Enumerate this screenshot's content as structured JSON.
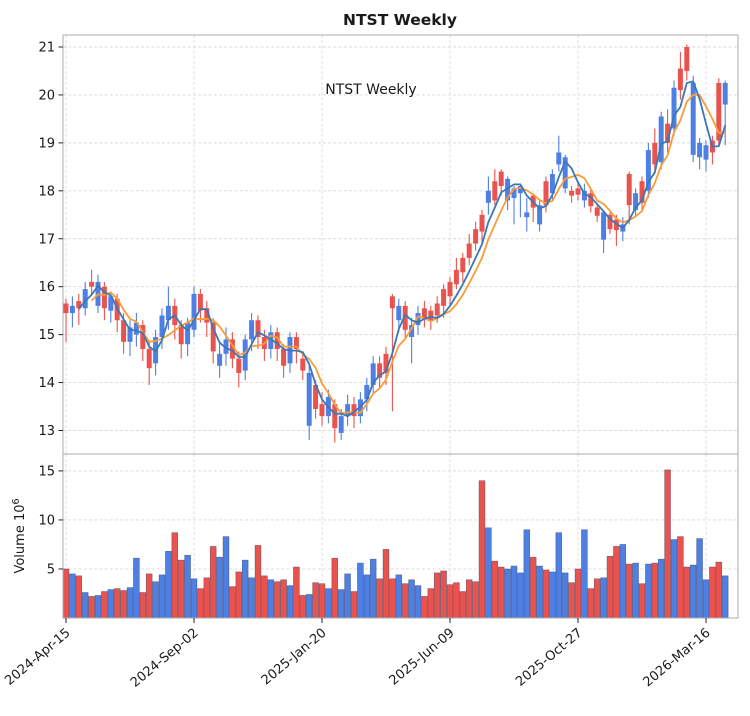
{
  "title": "NTST  Weekly",
  "annotation": "NTST  Weekly",
  "colors": {
    "up": "#4e80e3",
    "down": "#e9534e",
    "ma_fast": "#3b77b7",
    "ma_slow": "#f99c38",
    "grid": "#d9d9d9",
    "spine": "#ababab",
    "tick": "#262626",
    "volume_bar_edge": "rgba(35,40,90,0.55)"
  },
  "chart_data": {
    "type": "candlestick+volume",
    "symbol": "NTST",
    "interval": "Weekly",
    "price_axis": {
      "min": 12.55,
      "max": 21.3,
      "ticks": [
        13,
        14,
        15,
        16,
        17,
        18,
        19,
        20,
        21
      ]
    },
    "volume_axis": {
      "ticks": [
        5,
        10,
        15
      ],
      "max": 16.7,
      "label_base": "Volume  10",
      "label_exp": "6"
    },
    "x_axis": {
      "tick_indices": [
        0,
        20,
        40,
        60,
        80,
        100
      ],
      "tick_labels": [
        "2024-Apr-15",
        "2024-Sep-02",
        "2025-Jan-20",
        "2025-Jun-09",
        "2025-Oct-27",
        "2026-Mar-16"
      ]
    },
    "overlays": [
      {
        "name": "SMA-fast",
        "period": 3
      },
      {
        "name": "SMA-slow",
        "period": 5
      }
    ],
    "ohlcv_fields": [
      "open",
      "high",
      "low",
      "close",
      "volume_millions"
    ],
    "ohlcv": [
      [
        15.65,
        15.75,
        14.85,
        15.45,
        5.0
      ],
      [
        15.45,
        15.8,
        15.15,
        15.6,
        4.5
      ],
      [
        15.7,
        15.85,
        15.2,
        15.55,
        4.3
      ],
      [
        15.55,
        16.1,
        15.4,
        15.95,
        2.6
      ],
      [
        16.1,
        16.35,
        15.85,
        16.0,
        2.2
      ],
      [
        15.6,
        16.25,
        15.45,
        16.1,
        2.3
      ],
      [
        16.0,
        16.1,
        15.3,
        15.55,
        2.7
      ],
      [
        15.5,
        15.9,
        15.25,
        15.8,
        2.9
      ],
      [
        15.75,
        15.85,
        15.05,
        15.3,
        3.0
      ],
      [
        15.3,
        15.45,
        14.6,
        14.85,
        2.8
      ],
      [
        14.85,
        15.3,
        14.55,
        15.15,
        3.1
      ],
      [
        15.0,
        15.45,
        14.75,
        15.25,
        6.1
      ],
      [
        15.2,
        15.3,
        14.45,
        14.7,
        2.6
      ],
      [
        14.7,
        14.85,
        13.95,
        14.3,
        4.5
      ],
      [
        14.4,
        15.1,
        14.15,
        14.95,
        3.7
      ],
      [
        14.95,
        15.55,
        14.7,
        15.4,
        4.4
      ],
      [
        15.3,
        16.0,
        15.1,
        15.6,
        6.8
      ],
      [
        15.6,
        15.75,
        14.9,
        15.2,
        8.7
      ],
      [
        15.2,
        15.3,
        14.5,
        14.8,
        5.9
      ],
      [
        14.8,
        15.35,
        14.55,
        15.25,
        6.4
      ],
      [
        15.1,
        16.0,
        14.95,
        15.85,
        4.0
      ],
      [
        15.85,
        15.95,
        15.25,
        15.5,
        3.0
      ],
      [
        15.55,
        15.7,
        14.95,
        15.25,
        4.1
      ],
      [
        15.25,
        15.35,
        14.4,
        14.65,
        7.3
      ],
      [
        14.35,
        14.85,
        14.1,
        14.6,
        6.2
      ],
      [
        14.6,
        15.15,
        14.35,
        14.9,
        8.3
      ],
      [
        14.9,
        15.05,
        14.3,
        14.5,
        3.2
      ],
      [
        14.5,
        14.65,
        13.9,
        14.2,
        4.7
      ],
      [
        14.25,
        15.0,
        14.05,
        14.9,
        5.9
      ],
      [
        14.9,
        15.45,
        14.65,
        15.3,
        4.1
      ],
      [
        15.3,
        15.4,
        14.7,
        14.95,
        7.4
      ],
      [
        14.95,
        15.1,
        14.45,
        14.7,
        4.3
      ],
      [
        14.7,
        15.2,
        14.5,
        15.05,
        3.9
      ],
      [
        15.05,
        15.15,
        14.45,
        14.7,
        3.7
      ],
      [
        14.7,
        14.8,
        14.1,
        14.35,
        3.9
      ],
      [
        14.4,
        15.05,
        14.2,
        14.95,
        3.3
      ],
      [
        14.95,
        15.05,
        14.4,
        14.7,
        5.2
      ],
      [
        14.5,
        14.65,
        14.05,
        14.25,
        2.3
      ],
      [
        13.1,
        14.35,
        12.8,
        14.2,
        2.4
      ],
      [
        13.95,
        14.05,
        13.25,
        13.45,
        3.6
      ],
      [
        13.55,
        13.8,
        13.1,
        13.3,
        3.5
      ],
      [
        13.3,
        13.85,
        13.15,
        13.7,
        3.0
      ],
      [
        13.55,
        13.65,
        12.75,
        13.05,
        6.1
      ],
      [
        12.95,
        13.45,
        12.8,
        13.3,
        2.9
      ],
      [
        13.3,
        13.75,
        13.1,
        13.55,
        4.5
      ],
      [
        13.55,
        13.7,
        13.05,
        13.3,
        2.7
      ],
      [
        13.3,
        13.8,
        13.15,
        13.65,
        5.6
      ],
      [
        13.65,
        14.1,
        13.4,
        13.95,
        4.4
      ],
      [
        13.95,
        14.55,
        13.75,
        14.4,
        6.0
      ],
      [
        14.4,
        14.55,
        13.9,
        14.1,
        4.0
      ],
      [
        14.6,
        14.75,
        13.95,
        14.2,
        7.0
      ],
      [
        15.8,
        15.85,
        13.4,
        15.55,
        4.0
      ],
      [
        15.3,
        15.75,
        15.05,
        15.6,
        4.4
      ],
      [
        15.6,
        15.7,
        14.9,
        15.1,
        3.5
      ],
      [
        14.95,
        15.35,
        14.4,
        15.2,
        3.9
      ],
      [
        15.2,
        15.6,
        15.0,
        15.45,
        3.3
      ],
      [
        15.55,
        15.7,
        15.15,
        15.35,
        2.2
      ],
      [
        15.5,
        15.6,
        15.1,
        15.3,
        3.0
      ],
      [
        15.65,
        15.8,
        15.25,
        15.4,
        4.6
      ],
      [
        15.95,
        16.05,
        15.35,
        15.6,
        4.8
      ],
      [
        16.1,
        16.2,
        15.6,
        15.8,
        3.4
      ],
      [
        16.35,
        16.6,
        15.95,
        16.05,
        3.6
      ],
      [
        16.6,
        16.7,
        16.1,
        16.3,
        2.7
      ],
      [
        16.9,
        17.1,
        16.45,
        16.6,
        3.9
      ],
      [
        17.2,
        17.35,
        16.75,
        16.9,
        3.7
      ],
      [
        17.5,
        17.6,
        16.9,
        17.15,
        14.0
      ],
      [
        17.75,
        18.3,
        17.5,
        18.0,
        9.2
      ],
      [
        18.2,
        18.45,
        17.7,
        17.8,
        5.8
      ],
      [
        18.4,
        18.45,
        17.9,
        18.1,
        5.2
      ],
      [
        17.8,
        18.3,
        17.6,
        18.25,
        5.0
      ],
      [
        17.85,
        18.1,
        17.3,
        18.05,
        5.3
      ],
      [
        17.95,
        18.15,
        17.45,
        18.1,
        4.6
      ],
      [
        17.45,
        17.85,
        17.15,
        17.55,
        9.0
      ],
      [
        17.9,
        17.95,
        17.35,
        17.65,
        6.2
      ],
      [
        17.3,
        17.8,
        17.15,
        17.7,
        5.3
      ],
      [
        18.2,
        18.3,
        17.55,
        17.7,
        4.9
      ],
      [
        17.95,
        18.45,
        17.8,
        18.35,
        4.7
      ],
      [
        18.55,
        19.15,
        18.4,
        18.8,
        8.7
      ],
      [
        18.05,
        18.75,
        17.95,
        18.7,
        4.6
      ],
      [
        18.0,
        18.1,
        17.75,
        17.9,
        3.6
      ],
      [
        18.05,
        18.2,
        17.8,
        17.92,
        5.0
      ],
      [
        17.8,
        18.15,
        17.65,
        18.0,
        9.0
      ],
      [
        17.95,
        18.05,
        17.55,
        17.68,
        3.0
      ],
      [
        17.65,
        17.75,
        17.35,
        17.48,
        4.0
      ],
      [
        16.98,
        17.6,
        16.7,
        17.55,
        4.1
      ],
      [
        17.5,
        17.55,
        17.1,
        17.2,
        6.3
      ],
      [
        17.4,
        17.5,
        16.85,
        17.18,
        7.3
      ],
      [
        17.15,
        17.45,
        16.95,
        17.3,
        7.5
      ],
      [
        18.35,
        18.4,
        17.3,
        17.7,
        5.5
      ],
      [
        17.6,
        18.05,
        17.45,
        17.95,
        5.6
      ],
      [
        18.2,
        18.3,
        17.6,
        17.75,
        3.5
      ],
      [
        18.0,
        19.0,
        17.85,
        18.85,
        5.5
      ],
      [
        19.0,
        19.3,
        18.35,
        18.55,
        5.6
      ],
      [
        18.6,
        19.65,
        18.45,
        19.55,
        6.0
      ],
      [
        19.4,
        19.7,
        18.8,
        19.0,
        15.1
      ],
      [
        19.3,
        20.3,
        19.15,
        20.15,
        8.0
      ],
      [
        20.55,
        20.9,
        19.9,
        20.1,
        8.3
      ],
      [
        21.0,
        21.05,
        20.3,
        20.5,
        5.2
      ],
      [
        18.75,
        20.4,
        18.6,
        20.25,
        5.4
      ],
      [
        18.7,
        19.1,
        18.45,
        19.0,
        8.1
      ],
      [
        18.65,
        19.05,
        18.4,
        18.95,
        3.9
      ],
      [
        19.05,
        19.15,
        18.55,
        18.8,
        5.2
      ],
      [
        20.25,
        20.35,
        18.95,
        19.05,
        5.7
      ],
      [
        19.8,
        20.3,
        18.95,
        20.25,
        4.3
      ]
    ]
  }
}
